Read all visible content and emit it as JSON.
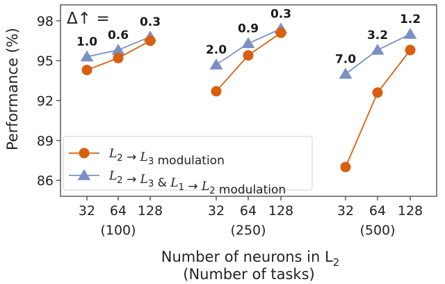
{
  "chart_data": {
    "type": "line",
    "ylabel": "Performance (%)",
    "xlabel_line1": "Number of neurons in L",
    "xlabel_sub": "2",
    "xlabel_line2": "(Number of tasks)",
    "y_ticks": [
      "86",
      "89",
      "92",
      "95",
      "98"
    ],
    "ylim": [
      84.8,
      99.2
    ],
    "grid": false,
    "delta_annotation": "Δ↑ =",
    "legend_position": "lower-left",
    "groups": [
      {
        "label": "(100)",
        "x": [
          "32",
          "64",
          "128"
        ],
        "l2l3": [
          94.3,
          95.2,
          96.5
        ],
        "both": [
          95.3,
          95.8,
          96.8
        ],
        "delta": [
          "1.0",
          "0.6",
          "0.3"
        ]
      },
      {
        "label": "(250)",
        "x": [
          "32",
          "64",
          "128"
        ],
        "l2l3": [
          92.7,
          95.4,
          97.1
        ],
        "both": [
          94.7,
          96.3,
          97.4
        ],
        "delta": [
          "2.0",
          "0.9",
          "0.3"
        ]
      },
      {
        "label": "(500)",
        "x": [
          "32",
          "64",
          "128"
        ],
        "l2l3": [
          87.0,
          92.6,
          95.8
        ],
        "both": [
          94.0,
          95.8,
          97.0
        ],
        "delta": [
          "7.0",
          "3.2",
          "1.2"
        ]
      }
    ],
    "series": [
      {
        "name": "L2 → L3 modulation",
        "legend_math": [
          {
            "v": "L",
            "sub": "2"
          },
          {
            "v": " → "
          },
          {
            "v": "L",
            "sub": "3"
          }
        ],
        "legend_suffix": " modulation",
        "color": "#d95f0e",
        "marker": "circle"
      },
      {
        "name": "L2 → L3 & L1 → L2 modulation",
        "legend_math": [
          {
            "v": "L",
            "sub": "2"
          },
          {
            "v": " → "
          },
          {
            "v": "L",
            "sub": "3"
          },
          {
            "v": " & "
          },
          {
            "v": "L",
            "sub": "1"
          },
          {
            "v": " → "
          },
          {
            "v": "L",
            "sub": "2"
          }
        ],
        "legend_suffix": " modulation",
        "color": "#7b8fc4",
        "marker": "triangle"
      }
    ]
  }
}
